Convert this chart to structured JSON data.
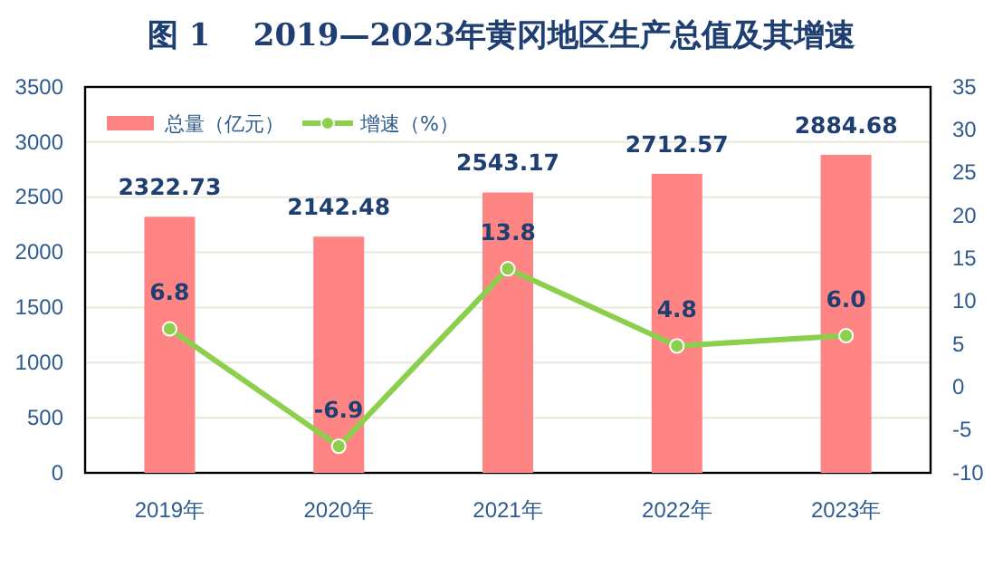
{
  "chart_data": {
    "type": "bar",
    "title": "图 1    2019—2023年黄冈地区生产总值及其增速",
    "categories": [
      "2019年",
      "2020年",
      "2021年",
      "2022年",
      "2023年"
    ],
    "series": [
      {
        "name": "总量（亿元）",
        "color": "#ff8585",
        "values": [
          2322.73,
          2142.48,
          2543.17,
          2712.57,
          2884.68
        ]
      },
      {
        "name": "增速（%）",
        "type": "line",
        "axis": "y2",
        "color": "#8ccf4d",
        "values": [
          6.8,
          -6.9,
          13.8,
          4.8,
          6.0
        ],
        "value_labels": [
          "6.8",
          "-6.9",
          "13.8",
          "4.8",
          "6.0"
        ]
      }
    ],
    "data_labels": true,
    "ylim": [
      0,
      3500
    ],
    "yticks": [
      0,
      500,
      1000,
      1500,
      2000,
      2500,
      3000,
      3500
    ],
    "y2lim": [
      -10,
      35
    ],
    "y2ticks": [
      -10,
      -5,
      0,
      5,
      10,
      15,
      20,
      25,
      30,
      35
    ],
    "grid": "y",
    "legend": "top left",
    "marker": "circle"
  }
}
